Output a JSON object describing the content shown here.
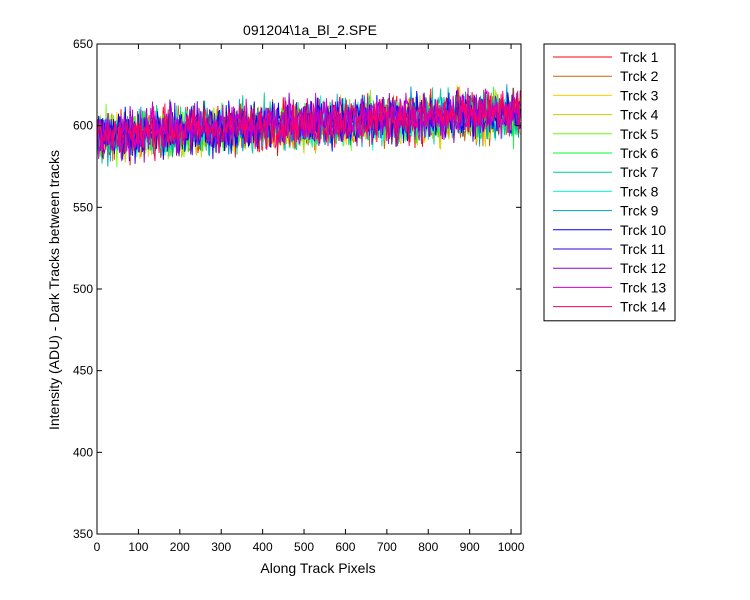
{
  "chart_data": {
    "type": "line",
    "title": "091204\\1a_Bl_2.SPE",
    "xlabel": "Along Track Pixels",
    "ylabel": "Intensity (ADU) - Dark Tracks between tracks",
    "xlim": [
      0,
      1024
    ],
    "ylim": [
      350,
      650
    ],
    "xticks": [
      0,
      100,
      200,
      300,
      400,
      500,
      600,
      700,
      800,
      900,
      1000
    ],
    "yticks": [
      350,
      400,
      450,
      500,
      550,
      600,
      650
    ],
    "grid": false,
    "legend_position": "outside-right",
    "noise_note": "each series is a noisy trace of ~1024 points; values summarized as a trend of mean level rising from ~592 at pixel 0 to ~607 at pixel 1024 with typical peak-to-peak spread of about 35 ADU",
    "series": [
      {
        "name": "Trck 1",
        "color": "#ff0000",
        "trend": [
          [
            0,
            593
          ],
          [
            256,
            597
          ],
          [
            512,
            601
          ],
          [
            768,
            604
          ],
          [
            1024,
            607
          ]
        ]
      },
      {
        "name": "Trck 2",
        "color": "#cc6600",
        "trend": [
          [
            0,
            592
          ],
          [
            256,
            596
          ],
          [
            512,
            600
          ],
          [
            768,
            603
          ],
          [
            1024,
            606
          ]
        ]
      },
      {
        "name": "Trck 3",
        "color": "#ffcc00",
        "trend": [
          [
            0,
            592
          ],
          [
            256,
            596
          ],
          [
            512,
            600
          ],
          [
            768,
            603
          ],
          [
            1024,
            606
          ]
        ]
      },
      {
        "name": "Trck 4",
        "color": "#cccc00",
        "trend": [
          [
            0,
            592
          ],
          [
            256,
            596
          ],
          [
            512,
            600
          ],
          [
            768,
            603
          ],
          [
            1024,
            606
          ]
        ]
      },
      {
        "name": "Trck 5",
        "color": "#66ff00",
        "trend": [
          [
            0,
            593
          ],
          [
            256,
            597
          ],
          [
            512,
            601
          ],
          [
            768,
            604
          ],
          [
            1024,
            607
          ]
        ]
      },
      {
        "name": "Trck 6",
        "color": "#00ff33",
        "trend": [
          [
            0,
            593
          ],
          [
            256,
            597
          ],
          [
            512,
            601
          ],
          [
            768,
            604
          ],
          [
            1024,
            607
          ]
        ]
      },
      {
        "name": "Trck 7",
        "color": "#00cc99",
        "trend": [
          [
            0,
            593
          ],
          [
            256,
            597
          ],
          [
            512,
            601
          ],
          [
            768,
            604
          ],
          [
            1024,
            607
          ]
        ]
      },
      {
        "name": "Trck 8",
        "color": "#00ffcc",
        "trend": [
          [
            0,
            593
          ],
          [
            256,
            597
          ],
          [
            512,
            601
          ],
          [
            768,
            604
          ],
          [
            1024,
            607
          ]
        ]
      },
      {
        "name": "Trck 9",
        "color": "#0099cc",
        "trend": [
          [
            0,
            594
          ],
          [
            256,
            598
          ],
          [
            512,
            602
          ],
          [
            768,
            605
          ],
          [
            1024,
            608
          ]
        ]
      },
      {
        "name": "Trck 10",
        "color": "#0000ff",
        "trend": [
          [
            0,
            594
          ],
          [
            256,
            598
          ],
          [
            512,
            602
          ],
          [
            768,
            605
          ],
          [
            1024,
            608
          ]
        ]
      },
      {
        "name": "Trck 11",
        "color": "#3300cc",
        "trend": [
          [
            0,
            594
          ],
          [
            256,
            598
          ],
          [
            512,
            602
          ],
          [
            768,
            605
          ],
          [
            1024,
            608
          ]
        ]
      },
      {
        "name": "Trck 12",
        "color": "#9900cc",
        "trend": [
          [
            0,
            594
          ],
          [
            256,
            598
          ],
          [
            512,
            602
          ],
          [
            768,
            605
          ],
          [
            1024,
            608
          ]
        ]
      },
      {
        "name": "Trck 13",
        "color": "#cc00cc",
        "trend": [
          [
            0,
            595
          ],
          [
            256,
            599
          ],
          [
            512,
            603
          ],
          [
            768,
            606
          ],
          [
            1024,
            609
          ]
        ]
      },
      {
        "name": "Trck 14",
        "color": "#ff0066",
        "trend": [
          [
            0,
            594
          ],
          [
            256,
            598
          ],
          [
            512,
            602
          ],
          [
            768,
            605
          ],
          [
            1024,
            608
          ]
        ]
      }
    ]
  }
}
